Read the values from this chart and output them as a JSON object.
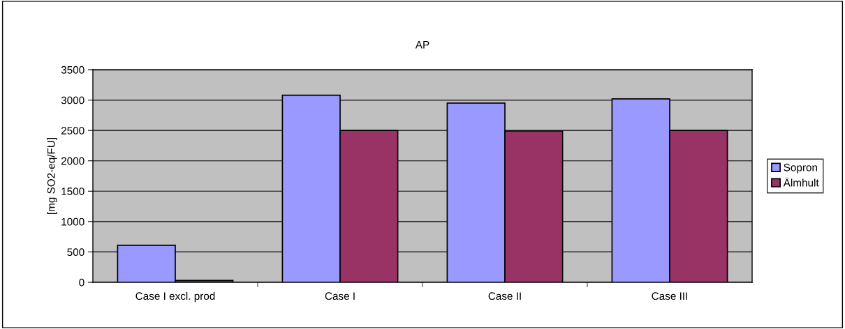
{
  "chart_data": {
    "type": "bar",
    "title": "AP",
    "ylabel": "[mg SO2-eq/FU]",
    "categories": [
      "Case I excl. prod",
      "Case I",
      "Case II",
      "Case III"
    ],
    "series": [
      {
        "name": "Sopron",
        "color": "#9999ff",
        "values": [
          610,
          3080,
          2950,
          3020
        ]
      },
      {
        "name": "Älmhult",
        "color": "#993366",
        "values": [
          30,
          2500,
          2490,
          2500
        ]
      }
    ],
    "ylim": [
      0,
      3500
    ],
    "yticks": [
      0,
      500,
      1000,
      1500,
      2000,
      2500,
      3000,
      3500
    ],
    "grid": "y",
    "legend": "right"
  }
}
